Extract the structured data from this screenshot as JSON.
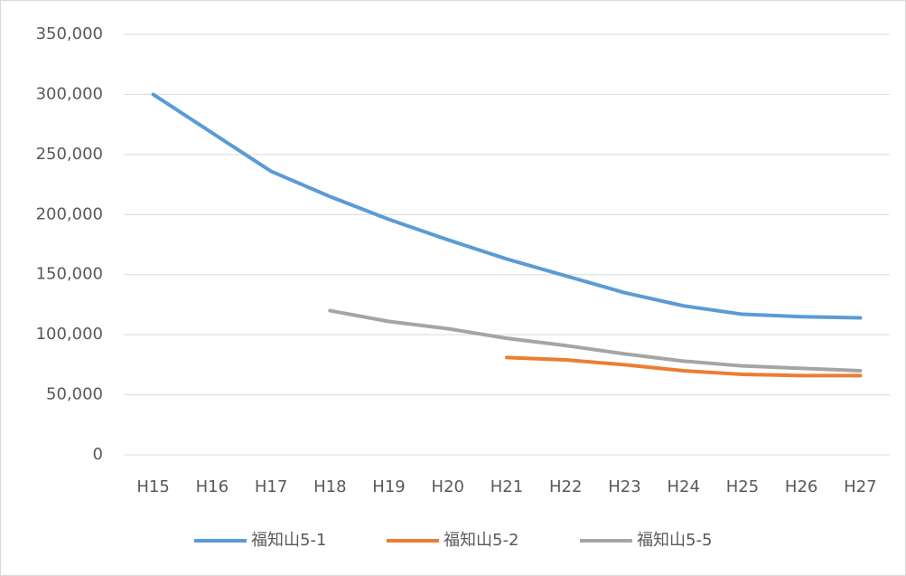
{
  "chart_data": {
    "type": "line",
    "categories": [
      "H15",
      "H16",
      "H17",
      "H18",
      "H19",
      "H20",
      "H21",
      "H22",
      "H23",
      "H24",
      "H25",
      "H26",
      "H27"
    ],
    "series": [
      {
        "name": "福知山5-1",
        "color": "#5b9bd5",
        "values": [
          300000,
          268000,
          236000,
          215000,
          196000,
          179000,
          163000,
          149000,
          135000,
          124000,
          117000,
          115000,
          114000
        ]
      },
      {
        "name": "福知山5-2",
        "color": "#ed7d31",
        "values": [
          null,
          null,
          null,
          null,
          null,
          null,
          81000,
          79000,
          75000,
          70000,
          67000,
          66000,
          66000
        ]
      },
      {
        "name": "福知山5-5",
        "color": "#a5a5a5",
        "values": [
          null,
          null,
          null,
          120000,
          111000,
          105000,
          97000,
          91000,
          84000,
          78000,
          74000,
          72000,
          70000
        ]
      }
    ],
    "ylim": [
      0,
      350000
    ],
    "yticks": [
      0,
      {
        "value": 50000,
        "label": "50,000"
      },
      {
        "value": 100000,
        "label": "100,000"
      },
      {
        "value": 150000,
        "label": "150,000"
      },
      {
        "value": 200000,
        "label": "200,000"
      },
      {
        "value": 250000,
        "label": "250,000"
      },
      {
        "value": 300000,
        "label": "300,000"
      },
      {
        "value": 350000,
        "label": "350,000"
      }
    ],
    "grid": true,
    "legend": "bottom"
  }
}
